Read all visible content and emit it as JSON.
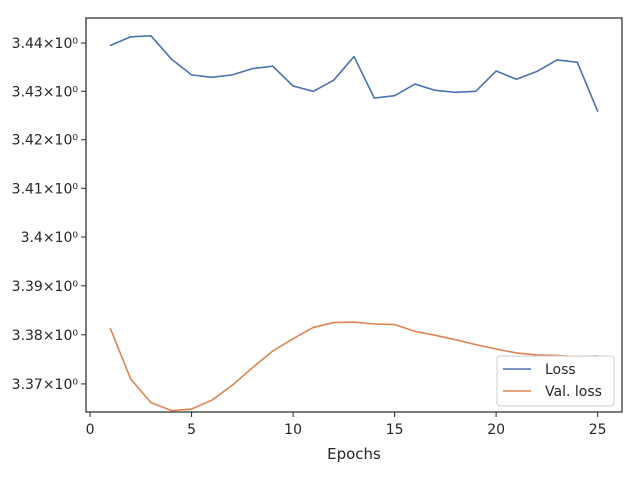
{
  "chart_data": {
    "type": "line",
    "title": "",
    "xlabel": "Epochs",
    "ylabel": "",
    "xlim": [
      -0.2,
      26.2
    ],
    "ylim": [
      3.3643,
      3.4452
    ],
    "y_scale": "log",
    "grid": false,
    "legend_position": "lower-right",
    "x_ticks": [
      {
        "value": 0,
        "label": "0"
      },
      {
        "value": 5,
        "label": "5"
      },
      {
        "value": 10,
        "label": "10"
      },
      {
        "value": 15,
        "label": "15"
      },
      {
        "value": 20,
        "label": "20"
      },
      {
        "value": 25,
        "label": "25"
      }
    ],
    "y_ticks": [
      {
        "value": 3.37,
        "label": "3.37×10⁰"
      },
      {
        "value": 3.38,
        "label": "3.38×10⁰"
      },
      {
        "value": 3.39,
        "label": "3.39×10⁰"
      },
      {
        "value": 3.4,
        "label": "3.4×10⁰"
      },
      {
        "value": 3.41,
        "label": "3.41×10⁰"
      },
      {
        "value": 3.42,
        "label": "3.42×10⁰"
      },
      {
        "value": 3.43,
        "label": "3.43×10⁰"
      },
      {
        "value": 3.44,
        "label": "3.44×10⁰"
      }
    ],
    "x": [
      1,
      2,
      3,
      4,
      5,
      6,
      7,
      8,
      9,
      10,
      11,
      12,
      13,
      14,
      15,
      16,
      17,
      18,
      19,
      20,
      21,
      22,
      23,
      24,
      25
    ],
    "series": [
      {
        "name": "Loss",
        "color": "#4c72b0",
        "values": [
          3.4395,
          3.4413,
          3.4415,
          3.4367,
          3.4334,
          3.4329,
          3.4334,
          3.4347,
          3.4352,
          3.4311,
          3.43,
          3.4323,
          3.4372,
          3.4286,
          3.4291,
          3.4315,
          3.4302,
          3.4298,
          3.43,
          3.4342,
          3.4325,
          3.4341,
          3.4365,
          3.436,
          3.4259
        ]
      },
      {
        "name": "Val. loss",
        "color": "#dd8452",
        "values": [
          3.3813,
          3.371,
          3.3662,
          3.3646,
          3.3649,
          3.3667,
          3.3697,
          3.3733,
          3.3767,
          3.3792,
          3.3815,
          3.3825,
          3.3826,
          3.3822,
          3.3821,
          3.3807,
          3.3799,
          3.379,
          3.378,
          3.3771,
          3.3763,
          3.3759,
          3.3758,
          3.3755,
          3.3757
        ]
      }
    ]
  }
}
